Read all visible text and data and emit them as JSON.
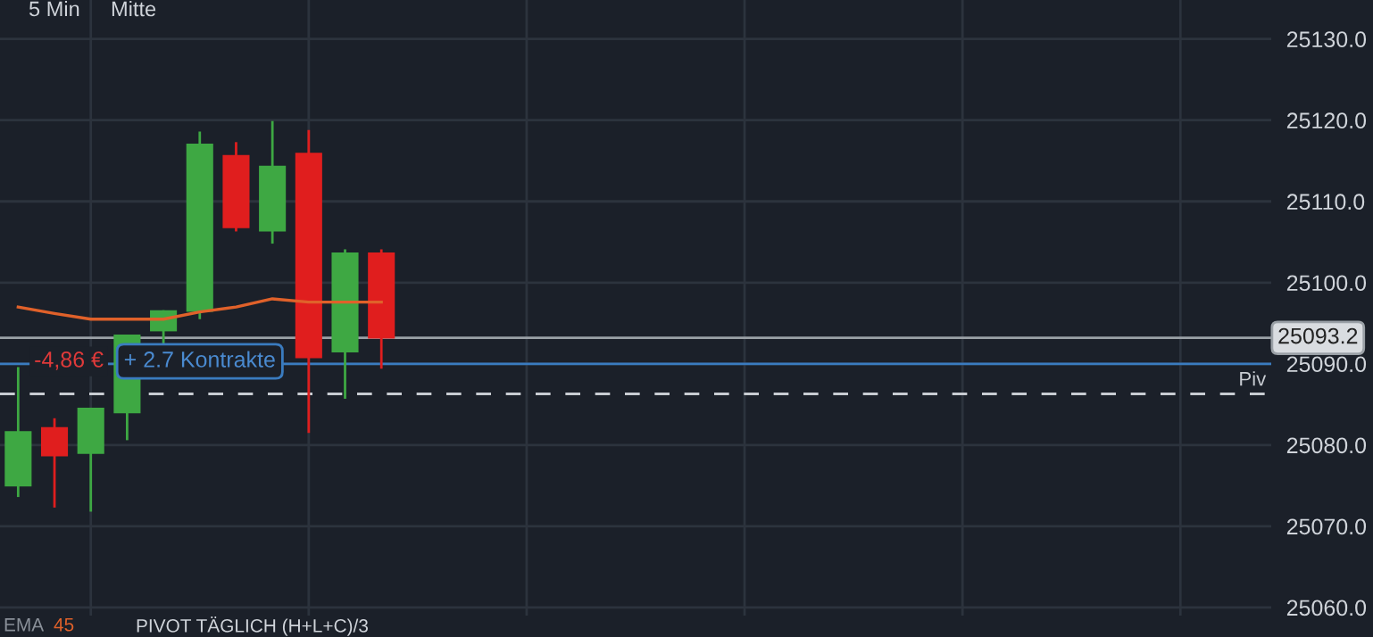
{
  "chart_data": {
    "type": "candlestick",
    "categories": [
      null,
      null,
      null,
      null,
      null,
      null,
      null,
      null,
      null,
      null,
      null,
      null,
      null,
      null,
      null,
      null,
      null,
      null,
      null,
      null,
      null,
      null,
      null,
      null,
      null,
      null,
      null,
      null,
      null,
      null,
      null,
      null,
      null,
      null,
      null
    ],
    "ohlc": [
      [
        25074.9,
        25089.6,
        25073.6,
        25081.7
      ],
      [
        25082.2,
        25083.3,
        25072.3,
        25078.6
      ],
      [
        25078.9,
        25084.6,
        25071.8,
        25084.6
      ],
      [
        25083.9,
        25093.6,
        25080.6,
        25093.6
      ],
      [
        25094.0,
        25096.6,
        25092.0,
        25096.6
      ],
      [
        25096.4,
        25118.6,
        25095.5,
        25117.1
      ],
      [
        25115.7,
        25117.3,
        25106.3,
        25106.7
      ],
      [
        25106.3,
        25119.9,
        25104.8,
        25114.4
      ],
      [
        25116.0,
        25118.8,
        25081.5,
        25090.7
      ],
      [
        25091.4,
        25104.1,
        25085.7,
        25103.7
      ],
      [
        25103.7,
        25104.1,
        25089.4,
        25093.1
      ],
      null,
      null,
      null,
      null,
      null,
      null,
      null,
      null,
      null,
      null,
      null,
      null,
      null,
      null,
      null,
      null,
      null,
      null,
      null,
      null,
      null,
      null,
      null,
      null
    ],
    "colors": [
      "#3ea843",
      "#e01e1e",
      "#3ea843",
      "#3ea843",
      "#3ea843",
      "#3ea843",
      "#e01e1e",
      "#3ea843",
      "#e01e1e",
      "#3ea843",
      "#e01e1e",
      null,
      null,
      null,
      null,
      null,
      null,
      null,
      null,
      null,
      null,
      null,
      null,
      null,
      null,
      null,
      null,
      null,
      null,
      null,
      null,
      null,
      null,
      null,
      null
    ],
    "series": [
      {
        "type": "line",
        "color": "#e0612a",
        "values": [
          25097.0,
          25096.2,
          25095.5,
          25095.5,
          25095.5,
          25096.4,
          25097.0,
          25098.0,
          25097.6,
          25097.6,
          25097.6,
          null,
          null,
          null,
          null,
          null,
          null,
          null,
          null,
          null,
          null,
          null,
          null,
          null,
          null,
          null,
          null,
          null,
          null,
          null,
          null,
          null,
          null,
          null,
          null
        ]
      }
    ],
    "ylim": [
      25059.0,
      25134.8
    ],
    "yticks": [
      {
        "value": 25060,
        "label": "25060.0"
      },
      {
        "value": 25070,
        "label": "25070.0"
      },
      {
        "value": 25080,
        "label": "25080.0"
      },
      {
        "value": 25090,
        "label": "25090.0"
      },
      {
        "value": 25100,
        "label": "25100.0"
      },
      {
        "value": 25110,
        "label": "25110.0"
      },
      {
        "value": 25120,
        "label": "25120.0"
      },
      {
        "value": 25130,
        "label": "25130.0"
      }
    ],
    "ref_lines": [
      {
        "axis": "y",
        "value": 25093.2,
        "label": "25093.2",
        "color": "#9aa0a6",
        "line_style": "solid"
      },
      {
        "axis": "y",
        "value": 25090,
        "label": "+ 2.7 Kontrakte",
        "color": "#3a7bbf",
        "line_style": "solid"
      },
      {
        "axis": "y",
        "value": 25086.3,
        "label": "Piv",
        "color": "#c8ccd2",
        "line_style": "dashed"
      }
    ],
    "annotations": [
      "5 Min",
      "Mitte",
      "-4,86 €",
      "EMA",
      "45",
      "PIVOT TÄGLICH (H+L+C)/3"
    ],
    "grid": true,
    "tick_labels": "y"
  }
}
